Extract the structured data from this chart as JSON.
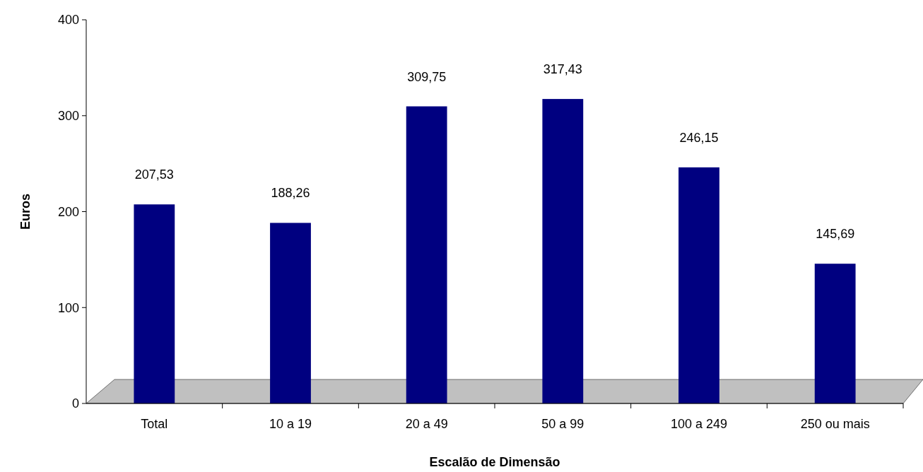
{
  "chart_data": {
    "type": "bar",
    "xlabel": "Escalão de Dimensão",
    "ylabel": "Euros",
    "categories": [
      "Total",
      "10 a 19",
      "20 a 49",
      "50 a 99",
      "100 a 249",
      "250 ou mais"
    ],
    "values": [
      207.53,
      188.26,
      309.75,
      317.43,
      246.15,
      145.69
    ],
    "value_labels": [
      "207,53",
      "188,26",
      "309,75",
      "317,43",
      "246,15",
      "145,69"
    ],
    "color": "#000080",
    "ylim": [
      0,
      400
    ],
    "yticks": [
      0,
      100,
      200,
      300,
      400
    ],
    "grid": false
  }
}
